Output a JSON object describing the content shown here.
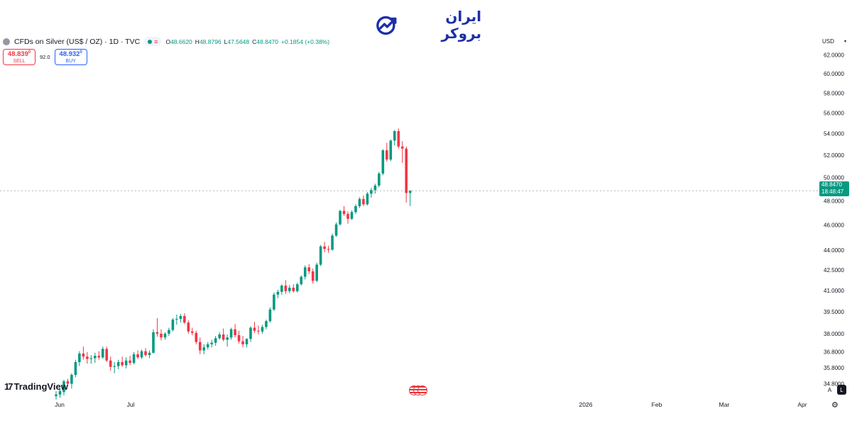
{
  "brand": {
    "name": "ایران بروکر",
    "icon": "chart-growth-icon"
  },
  "legend": {
    "symbol": "CFDs on Silver (US$ / OZ) · 1D · TVC",
    "ohlc": {
      "o_label": "O",
      "o": "48.6620",
      "h_label": "H",
      "h": "48.8796",
      "l_label": "L",
      "l": "47.5648",
      "c_label": "C",
      "c": "48.8470",
      "change": "+0.1854 (+0.38%)"
    }
  },
  "trade": {
    "sell": {
      "price": "48.839",
      "superscript": "0",
      "label": "SELL"
    },
    "spread": "92.0",
    "buy": {
      "price": "48.932",
      "superscript": "0",
      "label": "BUY"
    }
  },
  "currency": "USD",
  "last_price": {
    "price": "48.8470",
    "countdown": "18:48:47"
  },
  "footer": {
    "logo_text": "TradingView",
    "auto_label": "A",
    "log_label": "L"
  },
  "colors": {
    "up": "#089981",
    "down": "#f23645",
    "axis_text": "#131722",
    "brand": "#1d2fa8"
  },
  "chart_data": {
    "type": "candlestick",
    "scale": "log",
    "y_tick_labels": [
      "34.8000",
      "35.8000",
      "36.8000",
      "38.0000",
      "39.5000",
      "41.0000",
      "42.5000",
      "44.0000",
      "46.0000",
      "48.0000",
      "50.0000",
      "52.0000",
      "54.0000",
      "56.0000",
      "58.0000",
      "60.0000",
      "62.0000"
    ],
    "ylim": [
      33.8,
      62.6
    ],
    "x_tick_labels": [
      "Jun",
      "Jul",
      "2026",
      "Feb",
      "Mar",
      "Apr"
    ],
    "candles": [
      {
        "o": 34.05,
        "h": 34.35,
        "l": 33.85,
        "c": 34.15
      },
      {
        "o": 34.15,
        "h": 34.5,
        "l": 33.95,
        "c": 34.35
      },
      {
        "o": 34.3,
        "h": 35.05,
        "l": 34.1,
        "c": 34.95
      },
      {
        "o": 34.95,
        "h": 35.1,
        "l": 34.7,
        "c": 34.8
      },
      {
        "o": 34.8,
        "h": 35.45,
        "l": 34.5,
        "c": 35.35
      },
      {
        "o": 35.35,
        "h": 36.3,
        "l": 35.2,
        "c": 36.15
      },
      {
        "o": 36.15,
        "h": 36.85,
        "l": 35.9,
        "c": 36.7
      },
      {
        "o": 36.7,
        "h": 37.15,
        "l": 36.3,
        "c": 36.5
      },
      {
        "o": 36.5,
        "h": 36.8,
        "l": 36.05,
        "c": 36.35
      },
      {
        "o": 36.35,
        "h": 36.6,
        "l": 36.05,
        "c": 36.4
      },
      {
        "o": 36.4,
        "h": 36.75,
        "l": 36.1,
        "c": 36.55
      },
      {
        "o": 36.55,
        "h": 36.85,
        "l": 36.3,
        "c": 36.45
      },
      {
        "o": 36.45,
        "h": 37.15,
        "l": 36.35,
        "c": 37.0
      },
      {
        "o": 37.0,
        "h": 37.15,
        "l": 36.15,
        "c": 36.25
      },
      {
        "o": 36.25,
        "h": 36.5,
        "l": 35.6,
        "c": 35.85
      },
      {
        "o": 35.85,
        "h": 36.15,
        "l": 35.45,
        "c": 35.9
      },
      {
        "o": 35.9,
        "h": 36.3,
        "l": 35.7,
        "c": 36.15
      },
      {
        "o": 36.15,
        "h": 36.5,
        "l": 35.85,
        "c": 35.95
      },
      {
        "o": 35.95,
        "h": 36.45,
        "l": 35.75,
        "c": 36.25
      },
      {
        "o": 36.25,
        "h": 36.55,
        "l": 35.95,
        "c": 36.1
      },
      {
        "o": 36.1,
        "h": 36.8,
        "l": 36.0,
        "c": 36.65
      },
      {
        "o": 36.65,
        "h": 36.9,
        "l": 36.35,
        "c": 36.45
      },
      {
        "o": 36.45,
        "h": 36.95,
        "l": 36.35,
        "c": 36.85
      },
      {
        "o": 36.85,
        "h": 37.05,
        "l": 36.5,
        "c": 36.6
      },
      {
        "o": 36.6,
        "h": 36.9,
        "l": 36.4,
        "c": 36.75
      },
      {
        "o": 36.75,
        "h": 38.3,
        "l": 36.7,
        "c": 38.1
      },
      {
        "o": 38.1,
        "h": 39.05,
        "l": 37.8,
        "c": 38.0
      },
      {
        "o": 38.0,
        "h": 38.3,
        "l": 37.55,
        "c": 37.75
      },
      {
        "o": 37.75,
        "h": 38.1,
        "l": 37.6,
        "c": 38.0
      },
      {
        "o": 38.0,
        "h": 38.4,
        "l": 37.85,
        "c": 38.25
      },
      {
        "o": 38.25,
        "h": 39.05,
        "l": 38.15,
        "c": 38.95
      },
      {
        "o": 38.95,
        "h": 39.3,
        "l": 38.6,
        "c": 39.0
      },
      {
        "o": 39.0,
        "h": 39.35,
        "l": 38.75,
        "c": 39.2
      },
      {
        "o": 39.2,
        "h": 39.4,
        "l": 38.65,
        "c": 38.75
      },
      {
        "o": 38.75,
        "h": 38.9,
        "l": 38.0,
        "c": 38.15
      },
      {
        "o": 38.15,
        "h": 38.4,
        "l": 37.9,
        "c": 38.05
      },
      {
        "o": 38.05,
        "h": 38.2,
        "l": 37.3,
        "c": 37.45
      },
      {
        "o": 37.45,
        "h": 37.75,
        "l": 36.65,
        "c": 36.9
      },
      {
        "o": 36.9,
        "h": 37.3,
        "l": 36.65,
        "c": 37.1
      },
      {
        "o": 37.1,
        "h": 37.45,
        "l": 36.95,
        "c": 37.3
      },
      {
        "o": 37.3,
        "h": 37.6,
        "l": 37.1,
        "c": 37.4
      },
      {
        "o": 37.4,
        "h": 37.85,
        "l": 37.2,
        "c": 37.7
      },
      {
        "o": 37.7,
        "h": 38.1,
        "l": 37.6,
        "c": 37.95
      },
      {
        "o": 37.95,
        "h": 38.35,
        "l": 37.5,
        "c": 37.6
      },
      {
        "o": 37.6,
        "h": 37.95,
        "l": 37.15,
        "c": 37.75
      },
      {
        "o": 37.75,
        "h": 38.4,
        "l": 37.6,
        "c": 38.3
      },
      {
        "o": 38.3,
        "h": 38.65,
        "l": 37.75,
        "c": 37.9
      },
      {
        "o": 37.9,
        "h": 38.2,
        "l": 37.35,
        "c": 37.5
      },
      {
        "o": 37.5,
        "h": 37.85,
        "l": 37.1,
        "c": 37.3
      },
      {
        "o": 37.3,
        "h": 37.7,
        "l": 37.1,
        "c": 37.65
      },
      {
        "o": 37.65,
        "h": 38.5,
        "l": 37.45,
        "c": 38.4
      },
      {
        "o": 38.4,
        "h": 38.8,
        "l": 38.05,
        "c": 38.2
      },
      {
        "o": 38.2,
        "h": 38.55,
        "l": 37.95,
        "c": 38.15
      },
      {
        "o": 38.15,
        "h": 38.6,
        "l": 38.0,
        "c": 38.45
      },
      {
        "o": 38.45,
        "h": 38.95,
        "l": 38.3,
        "c": 38.85
      },
      {
        "o": 38.85,
        "h": 39.8,
        "l": 38.75,
        "c": 39.65
      },
      {
        "o": 39.65,
        "h": 40.85,
        "l": 39.55,
        "c": 40.7
      },
      {
        "o": 40.7,
        "h": 41.05,
        "l": 40.45,
        "c": 40.9
      },
      {
        "o": 40.9,
        "h": 41.45,
        "l": 40.7,
        "c": 41.35
      },
      {
        "o": 41.35,
        "h": 41.75,
        "l": 40.75,
        "c": 40.95
      },
      {
        "o": 40.95,
        "h": 41.4,
        "l": 40.8,
        "c": 41.2
      },
      {
        "o": 41.2,
        "h": 41.45,
        "l": 40.85,
        "c": 40.95
      },
      {
        "o": 40.95,
        "h": 41.55,
        "l": 40.85,
        "c": 41.45
      },
      {
        "o": 41.45,
        "h": 42.1,
        "l": 41.35,
        "c": 42.0
      },
      {
        "o": 42.0,
        "h": 42.85,
        "l": 41.8,
        "c": 42.7
      },
      {
        "o": 42.7,
        "h": 42.95,
        "l": 42.2,
        "c": 42.4
      },
      {
        "o": 42.4,
        "h": 42.6,
        "l": 41.5,
        "c": 41.7
      },
      {
        "o": 41.7,
        "h": 43.05,
        "l": 41.6,
        "c": 42.9
      },
      {
        "o": 42.9,
        "h": 44.4,
        "l": 42.8,
        "c": 44.3
      },
      {
        "o": 44.3,
        "h": 44.65,
        "l": 43.85,
        "c": 44.1
      },
      {
        "o": 44.1,
        "h": 44.35,
        "l": 43.8,
        "c": 44.05
      },
      {
        "o": 44.05,
        "h": 45.3,
        "l": 43.95,
        "c": 45.15
      },
      {
        "o": 45.15,
        "h": 46.2,
        "l": 45.05,
        "c": 46.05
      },
      {
        "o": 46.05,
        "h": 47.25,
        "l": 45.95,
        "c": 47.15
      },
      {
        "o": 47.15,
        "h": 47.55,
        "l": 46.75,
        "c": 46.9
      },
      {
        "o": 46.9,
        "h": 47.1,
        "l": 46.1,
        "c": 46.5
      },
      {
        "o": 46.5,
        "h": 47.2,
        "l": 46.4,
        "c": 47.05
      },
      {
        "o": 47.05,
        "h": 47.7,
        "l": 46.9,
        "c": 47.55
      },
      {
        "o": 47.55,
        "h": 48.3,
        "l": 47.4,
        "c": 48.15
      },
      {
        "o": 48.15,
        "h": 48.45,
        "l": 47.55,
        "c": 47.7
      },
      {
        "o": 47.7,
        "h": 48.75,
        "l": 47.6,
        "c": 48.6
      },
      {
        "o": 48.6,
        "h": 49.1,
        "l": 48.25,
        "c": 48.9
      },
      {
        "o": 48.9,
        "h": 49.45,
        "l": 48.6,
        "c": 49.3
      },
      {
        "o": 49.3,
        "h": 50.5,
        "l": 49.15,
        "c": 50.35
      },
      {
        "o": 50.35,
        "h": 52.55,
        "l": 50.2,
        "c": 52.45
      },
      {
        "o": 52.45,
        "h": 53.15,
        "l": 51.4,
        "c": 51.6
      },
      {
        "o": 51.6,
        "h": 53.45,
        "l": 51.45,
        "c": 53.35
      },
      {
        "o": 53.35,
        "h": 54.35,
        "l": 52.9,
        "c": 54.25
      },
      {
        "o": 54.25,
        "h": 54.5,
        "l": 52.6,
        "c": 52.8
      },
      {
        "o": 52.8,
        "h": 53.3,
        "l": 51.3,
        "c": 52.6
      },
      {
        "o": 52.6,
        "h": 52.8,
        "l": 47.85,
        "c": 48.66
      },
      {
        "o": 48.66,
        "h": 48.88,
        "l": 47.56,
        "c": 48.85
      }
    ]
  }
}
